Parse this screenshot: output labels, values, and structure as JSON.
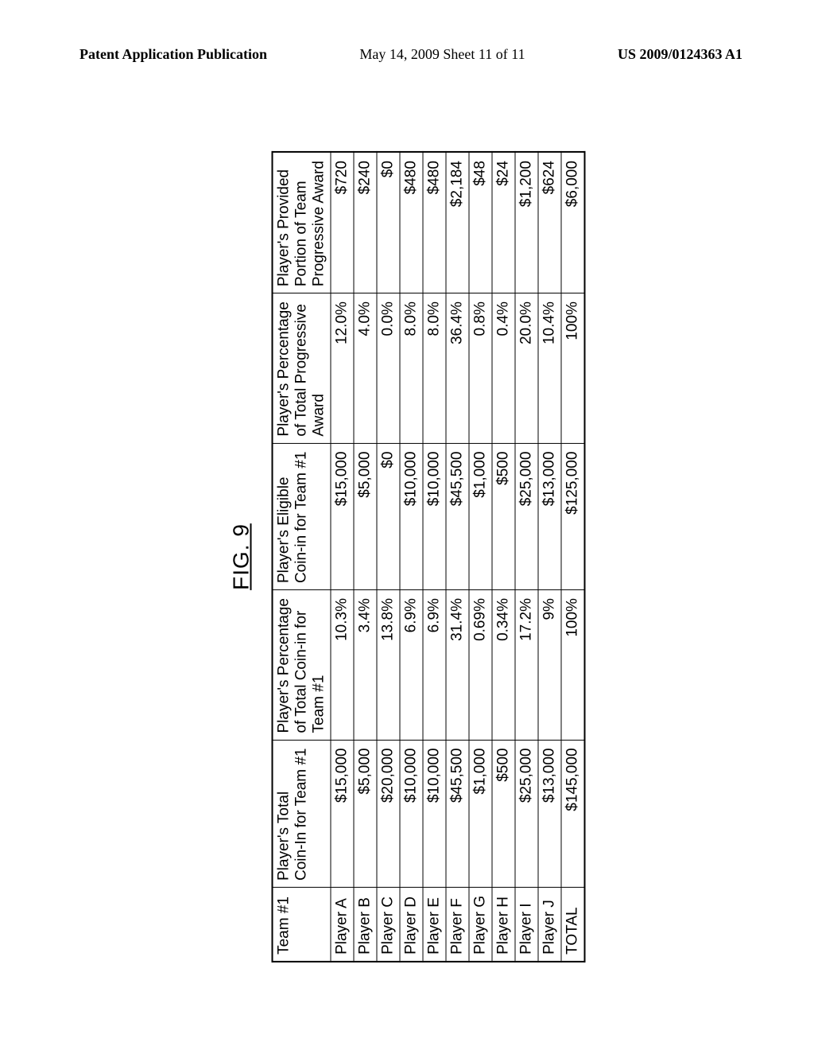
{
  "header": {
    "left": "Patent Application Publication",
    "mid": "May 14, 2009  Sheet 11 of 11",
    "right": "US 2009/0124363 A1"
  },
  "figure_label": "FIG. 9",
  "table": {
    "columns": [
      "Team #1",
      "Player's Total\nCoin-In for Team #1",
      "Player's Percentage\nof Total Coin-in for\nTeam #1",
      "Player's Eligible\nCoin-in for Team #1",
      "Player's Percentage\nof Total Progressive\nAward",
      "Player's Provided\nPortion of Team\nProgressive Award"
    ],
    "rows": [
      [
        "Player A",
        "$15,000",
        "10.3%",
        "$15,000",
        "12.0%",
        "$720"
      ],
      [
        "Player B",
        "$5,000",
        "3.4%",
        "$5,000",
        "4.0%",
        "$240"
      ],
      [
        "Player C",
        "$20,000",
        "13.8%",
        "$0",
        "0.0%",
        "$0"
      ],
      [
        "Player D",
        "$10,000",
        "6.9%",
        "$10,000",
        "8.0%",
        "$480"
      ],
      [
        "Player E",
        "$10,000",
        "6.9%",
        "$10,000",
        "8.0%",
        "$480"
      ],
      [
        "Player F",
        "$45,500",
        "31.4%",
        "$45,500",
        "36.4%",
        "$2,184"
      ],
      [
        "Player G",
        "$1,000",
        "0.69%",
        "$1,000",
        "0.8%",
        "$48"
      ],
      [
        "Player H",
        "$500",
        "0.34%",
        "$500",
        "0.4%",
        "$24"
      ],
      [
        "Player I",
        "$25,000",
        "17.2%",
        "$25,000",
        "20.0%",
        "$1,200"
      ],
      [
        "Player J",
        "$13,000",
        "9%",
        "$13,000",
        "10.4%",
        "$624"
      ],
      [
        "TOTAL",
        "$145,000",
        "100%",
        "$125,000",
        "100%",
        "$6,000"
      ]
    ]
  }
}
